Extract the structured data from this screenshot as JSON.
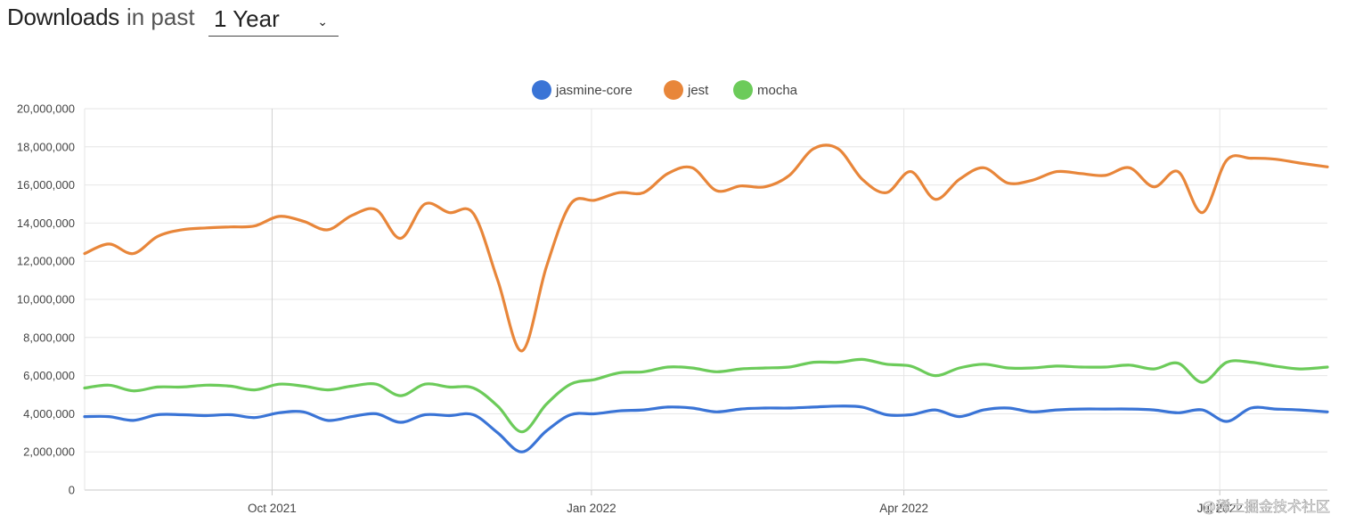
{
  "header": {
    "title_strong": "Downloads",
    "title_light": "in past",
    "range_selected": "1 Year"
  },
  "watermark": "@稀土掘金技术社区",
  "chart_data": {
    "type": "line",
    "title": "",
    "xlabel": "",
    "ylabel": "",
    "ylim": [
      0,
      20000000
    ],
    "y_ticks": [
      0,
      2000000,
      4000000,
      6000000,
      8000000,
      10000000,
      12000000,
      14000000,
      16000000,
      18000000,
      20000000
    ],
    "y_tick_labels": [
      "0",
      "2,000,000",
      "4,000,000",
      "6,000,000",
      "8,000,000",
      "10,000,000",
      "12,000,000",
      "14,000,000",
      "16,000,000",
      "18,000,000",
      "20,000,000"
    ],
    "x_range": [
      "2021-08-08",
      "2022-08-01"
    ],
    "x_ticks": [
      "2021-10-01",
      "2022-01-01",
      "2022-04-01",
      "2022-07-01"
    ],
    "x_tick_labels": [
      "Oct 2021",
      "Jan 2022",
      "Apr 2022",
      "Jul 2022"
    ],
    "grid": true,
    "legend_position": "top-center",
    "x": [
      "2021-08-08",
      "2021-08-15",
      "2021-08-22",
      "2021-08-29",
      "2021-09-05",
      "2021-09-12",
      "2021-09-19",
      "2021-09-26",
      "2021-10-03",
      "2021-10-10",
      "2021-10-17",
      "2021-10-24",
      "2021-10-31",
      "2021-11-07",
      "2021-11-14",
      "2021-11-21",
      "2021-11-28",
      "2021-12-05",
      "2021-12-12",
      "2021-12-19",
      "2021-12-26",
      "2022-01-02",
      "2022-01-09",
      "2022-01-16",
      "2022-01-23",
      "2022-01-30",
      "2022-02-06",
      "2022-02-13",
      "2022-02-20",
      "2022-02-27",
      "2022-03-06",
      "2022-03-13",
      "2022-03-20",
      "2022-03-27",
      "2022-04-03",
      "2022-04-10",
      "2022-04-17",
      "2022-04-24",
      "2022-05-01",
      "2022-05-08",
      "2022-05-15",
      "2022-05-22",
      "2022-05-29",
      "2022-06-05",
      "2022-06-12",
      "2022-06-19",
      "2022-06-26",
      "2022-07-03",
      "2022-07-10",
      "2022-07-17",
      "2022-07-24",
      "2022-08-01"
    ],
    "series": [
      {
        "name": "jasmine-core",
        "color": "#3a74d6",
        "values": [
          3850000,
          3850000,
          3650000,
          3950000,
          3950000,
          3900000,
          3950000,
          3800000,
          4050000,
          4100000,
          3650000,
          3850000,
          4000000,
          3550000,
          3950000,
          3900000,
          3950000,
          3000000,
          2000000,
          3100000,
          3950000,
          4000000,
          4150000,
          4200000,
          4350000,
          4300000,
          4100000,
          4250000,
          4300000,
          4300000,
          4350000,
          4400000,
          4350000,
          3950000,
          3950000,
          4200000,
          3850000,
          4200000,
          4300000,
          4100000,
          4200000,
          4250000,
          4250000,
          4250000,
          4200000,
          4050000,
          4200000,
          3600000,
          4300000,
          4250000,
          4200000,
          4100000
        ]
      },
      {
        "name": "jest",
        "color": "#e8863a",
        "values": [
          12400000,
          12900000,
          12400000,
          13300000,
          13650000,
          13750000,
          13800000,
          13850000,
          14350000,
          14100000,
          13650000,
          14400000,
          14700000,
          13200000,
          15000000,
          14550000,
          14500000,
          11000000,
          7300000,
          11700000,
          15000000,
          15200000,
          15600000,
          15600000,
          16600000,
          16900000,
          15700000,
          15950000,
          15900000,
          16500000,
          17900000,
          17900000,
          16300000,
          15600000,
          16700000,
          15250000,
          16300000,
          16900000,
          16100000,
          16250000,
          16700000,
          16600000,
          16500000,
          16900000,
          15900000,
          16700000,
          14550000,
          17300000,
          17400000,
          17350000,
          17150000,
          16950000
        ]
      },
      {
        "name": "mocha",
        "color": "#6ccb5a",
        "values": [
          5350000,
          5500000,
          5200000,
          5400000,
          5400000,
          5500000,
          5450000,
          5250000,
          5550000,
          5450000,
          5250000,
          5450000,
          5550000,
          4950000,
          5550000,
          5400000,
          5350000,
          4400000,
          3050000,
          4500000,
          5550000,
          5800000,
          6150000,
          6200000,
          6450000,
          6400000,
          6200000,
          6350000,
          6400000,
          6450000,
          6700000,
          6700000,
          6850000,
          6600000,
          6500000,
          6000000,
          6400000,
          6600000,
          6400000,
          6400000,
          6500000,
          6450000,
          6450000,
          6550000,
          6350000,
          6650000,
          5650000,
          6700000,
          6700000,
          6500000,
          6350000,
          6450000
        ]
      }
    ]
  }
}
